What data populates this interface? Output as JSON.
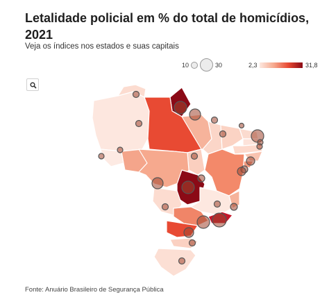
{
  "header": {
    "title": "Letalidade policial em % do total de homicídios, 2021",
    "subtitle": "Veja os índices nos estados e suas capitais"
  },
  "legend": {
    "size_min_label": "10",
    "size_max_label": "30",
    "color_min_label": "2,3",
    "color_max_label": "31,8"
  },
  "toolbar": {
    "search_icon": "search-icon"
  },
  "footer": {
    "source": "Fonte: Anuário Brasileiro de Segurança Pública"
  },
  "colors": {
    "low": "#fde8e0",
    "mid": "#f6a98e",
    "high": "#e84a33",
    "max": "#8b0a16"
  }
}
